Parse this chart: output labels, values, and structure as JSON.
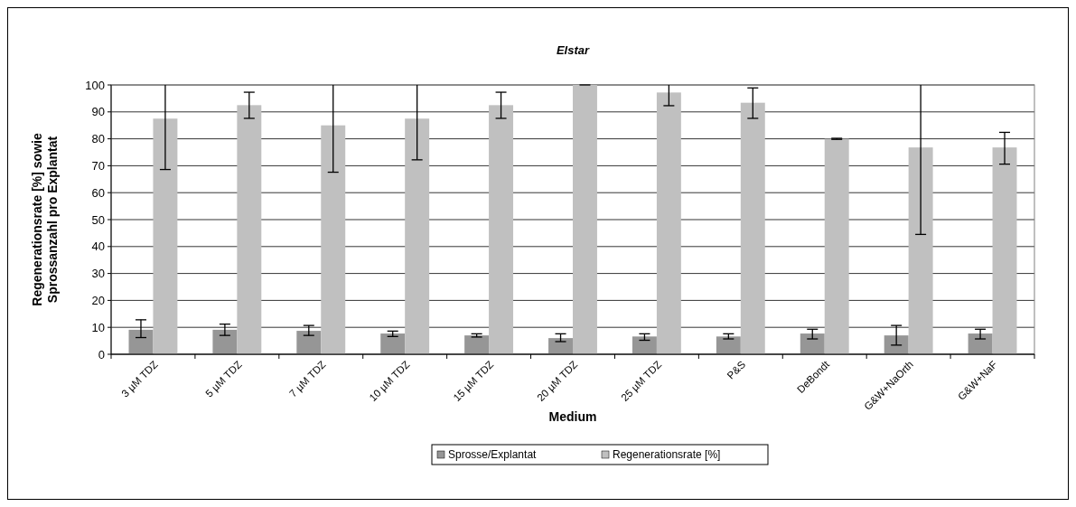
{
  "chart_data": {
    "type": "bar",
    "title": "Elstar",
    "xlabel": "Medium",
    "ylabel": "Regenerationsrate [%] sowie\nSprossanzahl pro Explantat",
    "categories": [
      "3 µM TDZ",
      "5 µM TDZ",
      "7 µM TDZ",
      "10 µM  TDZ",
      "15 µM TDZ",
      "20 µM TDZ",
      "25 µM TDZ",
      "P&S",
      "DeBondt",
      "G&W+NaOrth",
      "G&W+NaF"
    ],
    "series": [
      {
        "name": "Sprosse/Explantat",
        "color": "#969696",
        "values": [
          9.1,
          9.1,
          8.7,
          7.7,
          7.0,
          6.0,
          6.6,
          6.6,
          7.7,
          7.0,
          7.7
        ],
        "errors": [
          [
            6.2,
            12.8
          ],
          [
            7.0,
            11.2
          ],
          [
            7.0,
            10.7
          ],
          [
            6.6,
            8.6
          ],
          [
            6.4,
            7.6
          ],
          [
            4.7,
            7.6
          ],
          [
            5.2,
            7.6
          ],
          [
            5.7,
            7.6
          ],
          [
            5.7,
            9.3
          ],
          [
            3.4,
            10.7
          ],
          [
            5.7,
            9.3
          ]
        ]
      },
      {
        "name": "Regenerationsrate [%]",
        "color": "#c0c0c0",
        "values": [
          87.5,
          92.5,
          85.0,
          87.5,
          92.5,
          100,
          97.2,
          93.4,
          80,
          76.8,
          76.8
        ],
        "errors": [
          [
            68.6,
            100
          ],
          [
            87.6,
            97.3
          ],
          [
            67.6,
            100
          ],
          [
            72.2,
            100
          ],
          [
            87.6,
            97.3
          ],
          [
            100,
            100
          ],
          [
            92.3,
            100
          ],
          [
            87.6,
            98.9
          ],
          [
            79.8,
            80.2
          ],
          [
            44.5,
            100
          ],
          [
            70.6,
            82.4
          ]
        ]
      }
    ],
    "ylim": [
      0,
      100
    ],
    "yticks": [
      0,
      10,
      20,
      30,
      40,
      50,
      60,
      70,
      80,
      90,
      100
    ],
    "grid": "y",
    "legend": "bottom"
  }
}
